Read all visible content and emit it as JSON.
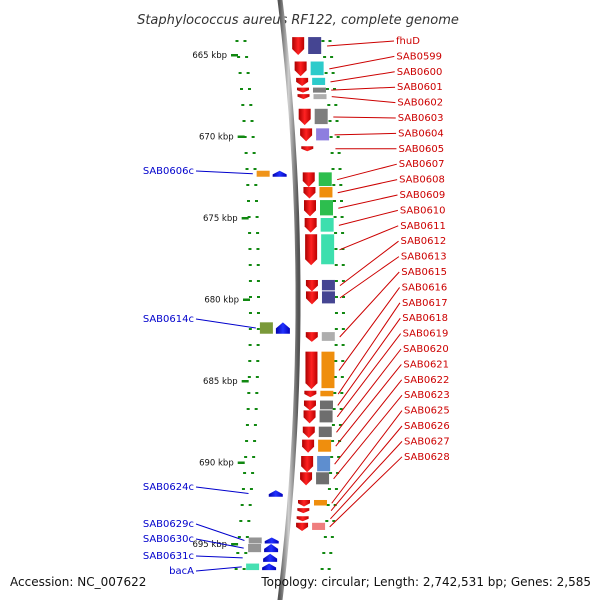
{
  "title": "Staphylococcus aureus RF122, complete genome",
  "footer": {
    "accession": "Accession: NC_007622",
    "topology": "Topology: circular; Length: 2,742,531 bp; Genes: 2,585"
  },
  "scale": {
    "unit": "kbp",
    "ticks": [
      {
        "kbp": 665,
        "label": "665 kbp"
      },
      {
        "kbp": 670,
        "label": "670 kbp"
      },
      {
        "kbp": 675,
        "label": "675 kbp"
      },
      {
        "kbp": 680,
        "label": "680 kbp"
      },
      {
        "kbp": 685,
        "label": "685 kbp"
      },
      {
        "kbp": 690,
        "label": "690 kbp"
      },
      {
        "kbp": 695,
        "label": "695 kbp"
      }
    ]
  },
  "colors": {
    "forward": "#cc0000",
    "reverse": "#0000cc",
    "forward_arrow": "#ee1111",
    "reverse_arrow": "#0000ee",
    "backbone": "#888888",
    "tick": "#118811"
  },
  "genes_forward": [
    {
      "name": "fhuD",
      "start": 663.9,
      "end": 665.0,
      "cog": "#3b3b8c"
    },
    {
      "name": "SAB0599",
      "start": 665.4,
      "end": 666.3,
      "cog": "#22c8c8"
    },
    {
      "name": "SAB0600",
      "start": 666.4,
      "end": 666.9,
      "cog": "#22c8c8"
    },
    {
      "name": "SAB0601",
      "start": 667.0,
      "end": 667.3,
      "cog": "#777777"
    },
    {
      "name": "SAB0602",
      "start": 667.4,
      "end": 667.7,
      "cog": "#aaaaaa"
    },
    {
      "name": "SAB0603",
      "start": 668.3,
      "end": 669.3,
      "cog": "#777777"
    },
    {
      "name": "SAB0604",
      "start": 669.5,
      "end": 670.3,
      "cog": "#8877dd"
    },
    {
      "name": "SAB0605",
      "start": 670.6,
      "end": 670.9,
      "cog": ""
    },
    {
      "name": "SAB0607",
      "start": 672.2,
      "end": 673.1,
      "cog": "#22bb44"
    },
    {
      "name": "SAB0608",
      "start": 673.1,
      "end": 673.8,
      "cog": "#ee8800"
    },
    {
      "name": "SAB0609",
      "start": 673.9,
      "end": 674.9,
      "cog": "#22bb44"
    },
    {
      "name": "SAB0610",
      "start": 675.0,
      "end": 675.9,
      "cog": "#33ddaa"
    },
    {
      "name": "SAB0611",
      "start": 676.0,
      "end": 677.9,
      "cog": "#33ddaa"
    },
    {
      "name": "SAB0612",
      "start": 678.8,
      "end": 679.5,
      "cog": "#3b3b8c"
    },
    {
      "name": "SAB0613",
      "start": 679.5,
      "end": 680.3,
      "cog": "#3b3b8c"
    },
    {
      "name": "SAB0615",
      "start": 682.0,
      "end": 682.6,
      "cog": "#aaaaaa"
    },
    {
      "name": "SAB0616",
      "start": 683.2,
      "end": 685.5,
      "cog": "#ee8800"
    },
    {
      "name": "SAB0617",
      "start": 685.6,
      "end": 686.0,
      "cog": "#ee8800"
    },
    {
      "name": "SAB0618",
      "start": 686.2,
      "end": 686.8,
      "cog": "#666666"
    },
    {
      "name": "SAB0619",
      "start": 686.8,
      "end": 687.6,
      "cog": "#666666"
    },
    {
      "name": "SAB0620",
      "start": 687.8,
      "end": 688.5,
      "cog": "#666666"
    },
    {
      "name": "SAB0621",
      "start": 688.6,
      "end": 689.4,
      "cog": "#ee8800"
    },
    {
      "name": "SAB0622",
      "start": 689.6,
      "end": 690.6,
      "cog": "#5588cc"
    },
    {
      "name": "SAB0623",
      "start": 690.6,
      "end": 691.4,
      "cog": "#666666"
    },
    {
      "name": "SAB0625",
      "start": 692.3,
      "end": 692.7,
      "cog": "#ee8800"
    },
    {
      "name": "SAB0626",
      "start": 692.8,
      "end": 693.1,
      "cog": ""
    },
    {
      "name": "SAB0627",
      "start": 693.3,
      "end": 693.5,
      "cog": ""
    },
    {
      "name": "SAB0628",
      "start": 693.7,
      "end": 694.2,
      "cog": "#ee7777"
    }
  ],
  "genes_reverse": [
    {
      "name": "SAB0606c",
      "start": 672.1,
      "end": 672.4,
      "cog": "#ee8800"
    },
    {
      "name": "SAB0614c",
      "start": 681.4,
      "end": 682.1,
      "cog": "#6b8e23"
    },
    {
      "name": "SAB0624c",
      "start": 691.7,
      "end": 692.1,
      "cog": ""
    },
    {
      "name": "SAB0629c",
      "start": 694.6,
      "end": 694.9,
      "cog": "#888888"
    },
    {
      "name": "SAB0630c",
      "start": 695.0,
      "end": 695.5,
      "cog": "#888888"
    },
    {
      "name": "SAB0631c",
      "start": 695.6,
      "end": 696.1,
      "cog": ""
    },
    {
      "name": "bacA",
      "start": 696.2,
      "end": 696.6,
      "cog": "#33ddaa"
    }
  ]
}
